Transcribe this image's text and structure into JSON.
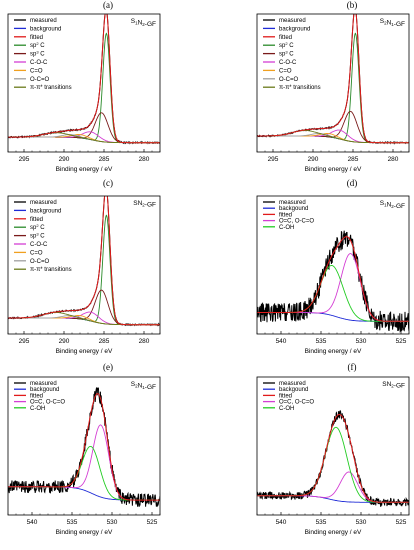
{
  "chart_data": [
    {
      "type": "line",
      "panel_label": "(a)",
      "sample": "S1N2-GF",
      "sample_main": "S",
      "sample_sub1": "1",
      "sample_mid": "N",
      "sample_sub2": "2",
      "sample_tail": "-GF",
      "xlabel": "Binding energy / eV",
      "xlim": [
        297,
        278
      ],
      "xticks": [
        295,
        290,
        285,
        280
      ],
      "ylim": [
        0,
        1.1
      ],
      "legend_position": "top-left",
      "legend": [
        {
          "label": "measured",
          "color": "#000000"
        },
        {
          "label": "background",
          "color": "#1f2bd6"
        },
        {
          "label": "fitted",
          "color": "#e01a1a"
        },
        {
          "label": "sp2 C",
          "color": "#2a8a2a",
          "sup": "2",
          "base": "sp",
          "tail": " C"
        },
        {
          "label": "sp3 C",
          "color": "#7a1a1a",
          "sup": "3",
          "base": "sp",
          "tail": " C"
        },
        {
          "label": "C-O-C",
          "color": "#d43fd4"
        },
        {
          "label": "C=O",
          "color": "#f0a020"
        },
        {
          "label": "O-C=O",
          "color": "#a0a0a0"
        },
        {
          "label": "π-π* transitions",
          "color": "#6a7a1a"
        }
      ],
      "kind": "c1s",
      "bg": [
        0.08,
        0.03
      ],
      "peaks": [
        {
          "center": 284.7,
          "amp": 0.98,
          "width": 0.45,
          "color": "#2a8a2a"
        },
        {
          "center": 285.3,
          "amp": 0.26,
          "width": 0.8,
          "color": "#7a1a1a"
        },
        {
          "center": 286.6,
          "amp": 0.07,
          "width": 1.0,
          "color": "#d43fd4"
        },
        {
          "center": 288.0,
          "amp": 0.03,
          "width": 1.0,
          "color": "#f0a020"
        },
        {
          "center": 289.2,
          "amp": 0.025,
          "width": 1.0,
          "color": "#a0a0a0"
        },
        {
          "center": 291.0,
          "amp": 0.04,
          "width": 1.6,
          "color": "#6a7a1a"
        }
      ]
    },
    {
      "type": "line",
      "panel_label": "(b)",
      "sample": "S2N1-GF",
      "sample_main": "S",
      "sample_sub1": "2",
      "sample_mid": "N",
      "sample_sub2": "1",
      "sample_tail": "-GF",
      "xlabel": "Binding energy / eV",
      "xlim": [
        297,
        278
      ],
      "xticks": [
        295,
        290,
        285,
        280
      ],
      "ylim": [
        0,
        1.1
      ],
      "legend_position": "top-left",
      "legend": [
        {
          "label": "measured",
          "color": "#000000"
        },
        {
          "label": "background",
          "color": "#1f2bd6"
        },
        {
          "label": "fitted",
          "color": "#e01a1a"
        },
        {
          "label": "sp2 C",
          "color": "#2a8a2a",
          "sup": "2",
          "base": "sp",
          "tail": " C"
        },
        {
          "label": "sp3 C",
          "color": "#7a1a1a",
          "sup": "3",
          "base": "sp",
          "tail": " C"
        },
        {
          "label": "C-O-C",
          "color": "#d43fd4"
        },
        {
          "label": "C=O",
          "color": "#f0a020"
        },
        {
          "label": "O-C=O",
          "color": "#a0a0a0"
        },
        {
          "label": "π-π* transitions",
          "color": "#6a7a1a"
        }
      ],
      "kind": "c1s",
      "bg": [
        0.09,
        0.03
      ],
      "peaks": [
        {
          "center": 284.7,
          "amp": 0.98,
          "width": 0.45,
          "color": "#2a8a2a"
        },
        {
          "center": 285.3,
          "amp": 0.27,
          "width": 0.8,
          "color": "#7a1a1a"
        },
        {
          "center": 286.6,
          "amp": 0.08,
          "width": 1.0,
          "color": "#d43fd4"
        },
        {
          "center": 288.0,
          "amp": 0.03,
          "width": 1.0,
          "color": "#f0a020"
        },
        {
          "center": 289.2,
          "amp": 0.025,
          "width": 1.0,
          "color": "#a0a0a0"
        },
        {
          "center": 291.0,
          "amp": 0.05,
          "width": 1.6,
          "color": "#6a7a1a"
        }
      ]
    },
    {
      "type": "line",
      "panel_label": "(c)",
      "sample": "SN2-GF",
      "sample_main": "SN",
      "sample_sub1": "",
      "sample_mid": "",
      "sample_sub2": "2",
      "sample_tail": "-GF",
      "xlabel": "Binding energy / eV",
      "xlim": [
        297,
        278
      ],
      "xticks": [
        295,
        290,
        285,
        280
      ],
      "ylim": [
        0,
        1.1
      ],
      "legend_position": "top-left",
      "legend": [
        {
          "label": "measured",
          "color": "#000000"
        },
        {
          "label": "background",
          "color": "#1f2bd6"
        },
        {
          "label": "fitted",
          "color": "#e01a1a"
        },
        {
          "label": "sp2 C",
          "color": "#2a8a2a",
          "sup": "2",
          "base": "sp",
          "tail": " C"
        },
        {
          "label": "sp3 C",
          "color": "#7a1a1a",
          "sup": "3",
          "base": "sp",
          "tail": " C"
        },
        {
          "label": "C-O-C",
          "color": "#d43fd4"
        },
        {
          "label": "C=O",
          "color": "#f0a020"
        },
        {
          "label": "O-C=O",
          "color": "#a0a0a0"
        },
        {
          "label": "π-π* transitions",
          "color": "#6a7a1a"
        }
      ],
      "kind": "c1s",
      "bg": [
        0.09,
        0.03
      ],
      "peaks": [
        {
          "center": 284.7,
          "amp": 0.98,
          "width": 0.45,
          "color": "#2a8a2a"
        },
        {
          "center": 285.3,
          "amp": 0.3,
          "width": 0.8,
          "color": "#7a1a1a"
        },
        {
          "center": 286.6,
          "amp": 0.08,
          "width": 1.0,
          "color": "#d43fd4"
        },
        {
          "center": 288.0,
          "amp": 0.03,
          "width": 1.0,
          "color": "#f0a020"
        },
        {
          "center": 289.2,
          "amp": 0.025,
          "width": 1.0,
          "color": "#a0a0a0"
        },
        {
          "center": 291.0,
          "amp": 0.05,
          "width": 1.6,
          "color": "#6a7a1a"
        }
      ]
    },
    {
      "type": "line",
      "panel_label": "(d)",
      "sample": "S1N2-GF",
      "sample_main": "S",
      "sample_sub1": "1",
      "sample_mid": "N",
      "sample_sub2": "2",
      "sample_tail": "-GF",
      "xlabel": "Binding energy / eV",
      "xlim": [
        543,
        524
      ],
      "xticks": [
        540,
        535,
        530,
        525
      ],
      "ylim": [
        0,
        1.1
      ],
      "legend_position": "top-left",
      "legend": [
        {
          "label": "measured",
          "color": "#000000"
        },
        {
          "label": "backgound",
          "color": "#1f2bd6"
        },
        {
          "label": "fitted",
          "color": "#e01a1a"
        },
        {
          "label": "O=C, O-C=O",
          "color": "#d43fd4"
        },
        {
          "label": "C-OH",
          "color": "#22cc22"
        }
      ],
      "kind": "o1s",
      "noise": 0.09,
      "bg": [
        0.14,
        0.06
      ],
      "bgStep": 533.0,
      "peaks": [
        {
          "center": 531.3,
          "amp": 0.6,
          "width": 1.2,
          "color": "#d43fd4"
        },
        {
          "center": 533.6,
          "amp": 0.45,
          "width": 1.4,
          "color": "#22cc22"
        }
      ]
    },
    {
      "type": "line",
      "panel_label": "(e)",
      "sample": "S2N1-GF",
      "sample_main": "S",
      "sample_sub1": "2",
      "sample_mid": "N",
      "sample_sub2": "1",
      "sample_tail": "-GF",
      "xlabel": "Binding energy / eV",
      "xlim": [
        543,
        524
      ],
      "xticks": [
        540,
        535,
        530,
        525
      ],
      "ylim": [
        0,
        1.1
      ],
      "legend_position": "top-left",
      "legend": [
        {
          "label": "measured",
          "color": "#000000"
        },
        {
          "label": "backgound",
          "color": "#1f2bd6"
        },
        {
          "label": "fitted",
          "color": "#e01a1a"
        },
        {
          "label": "O=C, O-C=O",
          "color": "#d43fd4"
        },
        {
          "label": "C-OH",
          "color": "#22cc22"
        }
      ],
      "kind": "o1s",
      "noise": 0.06,
      "bg": [
        0.2,
        0.08
      ],
      "bgStep": 532.5,
      "peaks": [
        {
          "center": 531.4,
          "amp": 0.65,
          "width": 1.0,
          "color": "#d43fd4"
        },
        {
          "center": 532.6,
          "amp": 0.42,
          "width": 1.1,
          "color": "#22cc22"
        }
      ]
    },
    {
      "type": "line",
      "panel_label": "(f)",
      "sample": "SN2-GF",
      "sample_main": "SN",
      "sample_sub1": "",
      "sample_mid": "",
      "sample_sub2": "2",
      "sample_tail": "-GF",
      "xlabel": "Binding energy / eV",
      "xlim": [
        543,
        524
      ],
      "xticks": [
        540,
        535,
        530,
        525
      ],
      "ylim": [
        0,
        1.1
      ],
      "legend_position": "top-left",
      "legend": [
        {
          "label": "measured",
          "color": "#000000"
        },
        {
          "label": "backgound",
          "color": "#1f2bd6"
        },
        {
          "label": "fitted",
          "color": "#e01a1a"
        },
        {
          "label": "O=C, O-C=O",
          "color": "#d43fd4"
        },
        {
          "label": "C-OH",
          "color": "#22cc22"
        }
      ],
      "kind": "o1s",
      "noise": 0.035,
      "bg": [
        0.12,
        0.06
      ],
      "bgStep": 534.0,
      "peaks": [
        {
          "center": 531.5,
          "amp": 0.27,
          "width": 1.1,
          "color": "#d43fd4"
        },
        {
          "center": 533.1,
          "amp": 0.66,
          "width": 1.35,
          "color": "#22cc22"
        }
      ]
    }
  ]
}
